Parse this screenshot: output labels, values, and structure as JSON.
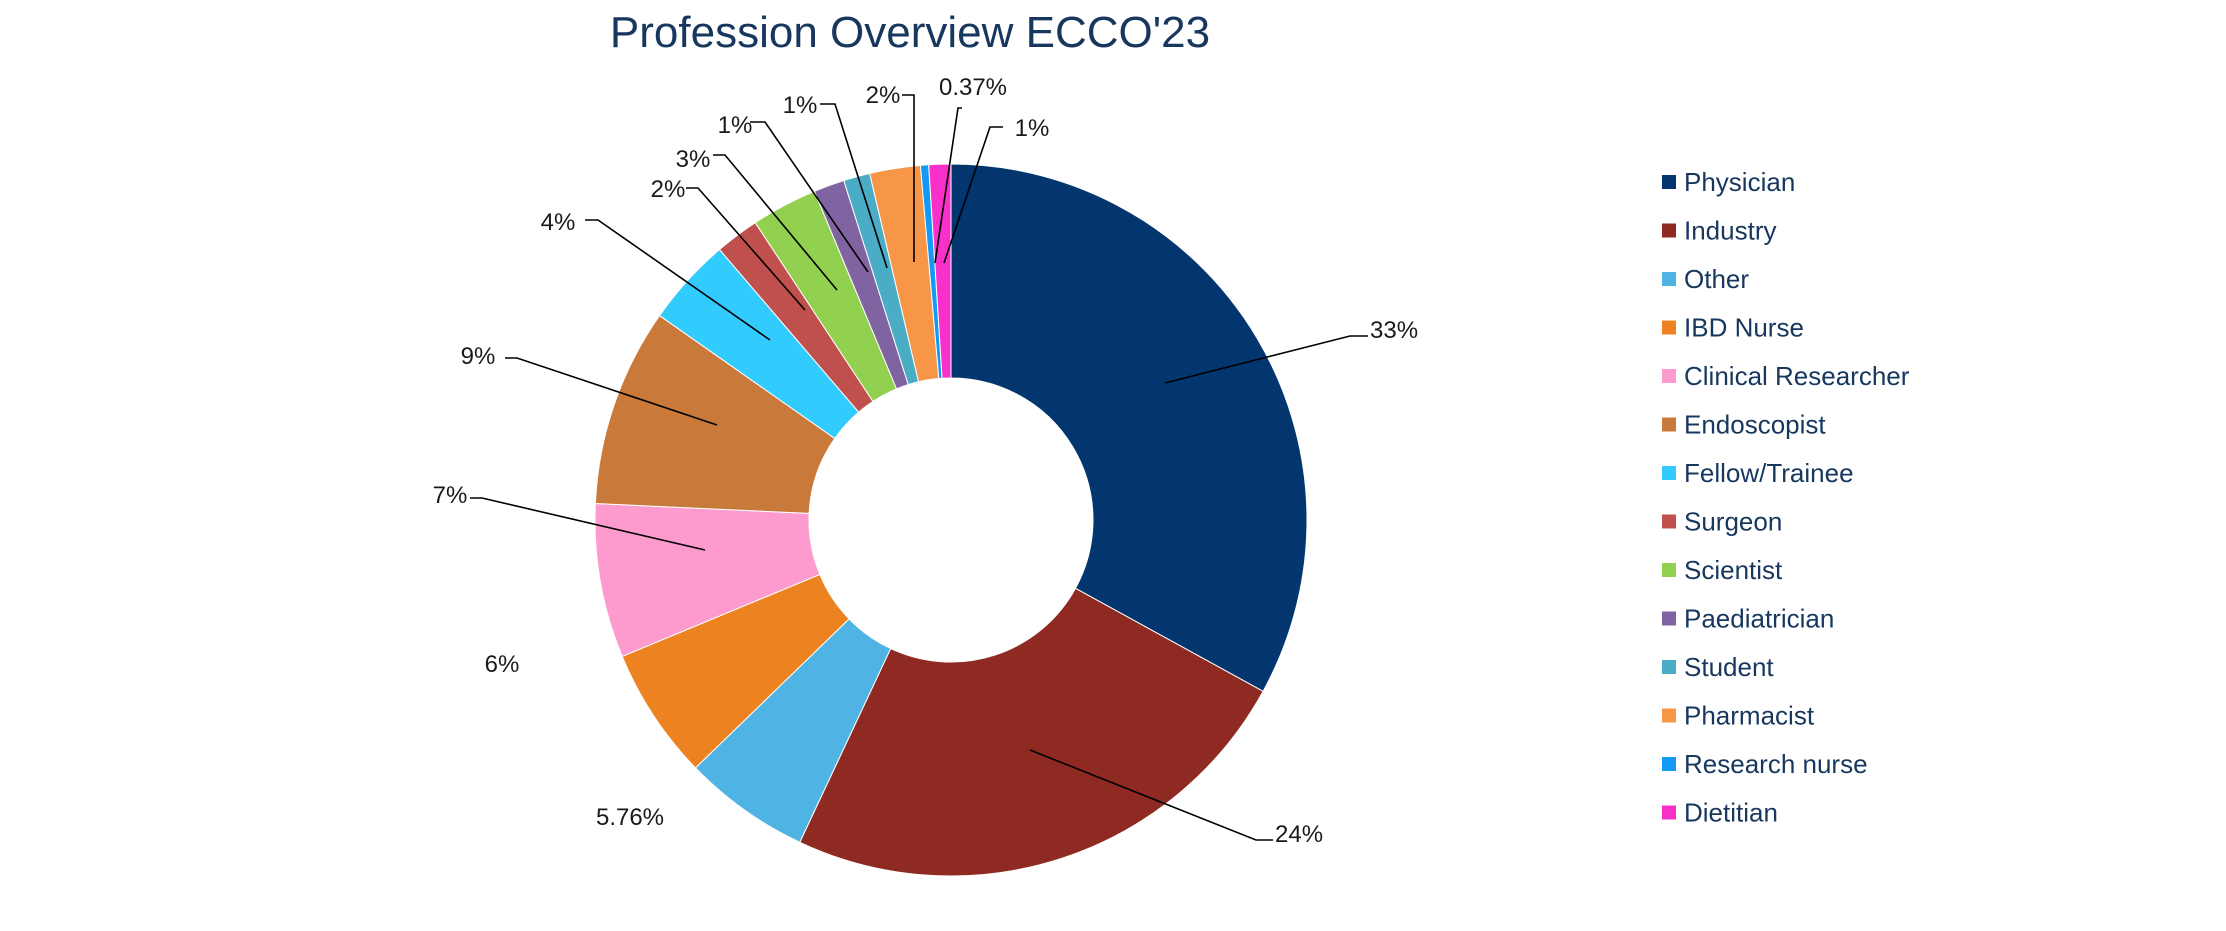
{
  "chart_data": {
    "type": "pie",
    "title": "Profession Overview ECCO'23",
    "series": [
      {
        "name": "Physician",
        "value": 33,
        "label": "33%",
        "color": "#03356f"
      },
      {
        "name": "Industry",
        "value": 24,
        "label": "24%",
        "color": "#8f2a22"
      },
      {
        "name": "Other",
        "value": 5.76,
        "label": "5.76%",
        "color": "#4fb4e3"
      },
      {
        "name": "IBD Nurse",
        "value": 6,
        "label": "6%",
        "color": "#ec8220"
      },
      {
        "name": "Clinical Researcher",
        "value": 7,
        "label": "7%",
        "color": "#fd9ace"
      },
      {
        "name": "Endoscopist",
        "value": 9,
        "label": "9%",
        "color": "#c97939"
      },
      {
        "name": "Fellow/Trainee",
        "value": 4,
        "label": "4%",
        "color": "#32cbfd"
      },
      {
        "name": "Surgeon",
        "value": 2,
        "label": "2%",
        "color": "#c0504d"
      },
      {
        "name": "Scientist",
        "value": 3,
        "label": "3%",
        "color": "#92d050"
      },
      {
        "name": "Paediatrician",
        "value": 1.4,
        "label": "1%",
        "color": "#8064a2"
      },
      {
        "name": "Student",
        "value": 1.2,
        "label": "1%",
        "color": "#4bacc6"
      },
      {
        "name": "Pharmacist",
        "value": 2.3,
        "label": "2%",
        "color": "#f79646"
      },
      {
        "name": "Research nurse",
        "value": 0.37,
        "label": "0.37%",
        "color": "#1499f5"
      },
      {
        "name": "Dietitian",
        "value": 1,
        "label": "1%",
        "color": "#f830c9"
      }
    ],
    "legend": "right",
    "donut": true
  }
}
